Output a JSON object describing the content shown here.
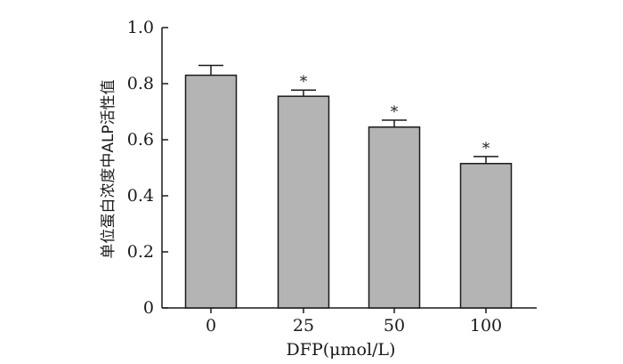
{
  "chart_data": {
    "type": "bar",
    "title": "",
    "xlabel": "DFP(μmol/L)",
    "ylabel": "单位蛋白浓度中ALP活性值",
    "categories": [
      "0",
      "25",
      "50",
      "100"
    ],
    "values": [
      0.83,
      0.755,
      0.645,
      0.515
    ],
    "errors": [
      0.035,
      0.022,
      0.025,
      0.025
    ],
    "significance": [
      "",
      "*",
      "*",
      "*"
    ],
    "ylim": [
      0,
      1.0
    ],
    "yticks": [
      0,
      0.2,
      0.4,
      0.6,
      0.8,
      1.0
    ],
    "ytick_labels": [
      "0",
      "0.2",
      "0.4",
      "0.6",
      "0.8",
      "1.0"
    ],
    "grid": false,
    "bar_color": "#b4b4b4",
    "edge_color": "#1a1a1a"
  }
}
